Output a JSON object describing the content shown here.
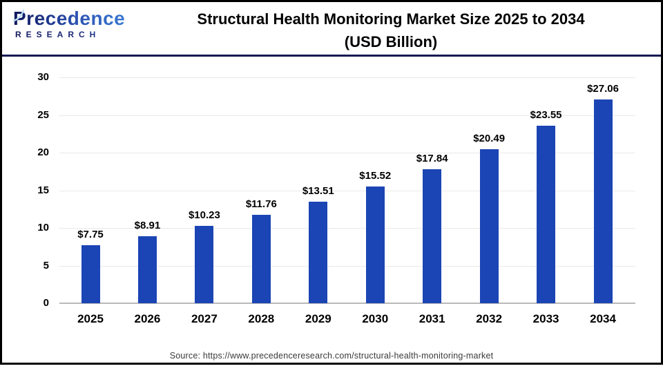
{
  "header": {
    "logo": {
      "brand": "Precedence",
      "subtitle": "RESEARCH"
    },
    "title_line1": "Structural Health Monitoring Market Size 2025 to 2034",
    "title_line2": "(USD Billion)"
  },
  "chart_data": {
    "type": "bar",
    "title": "Structural Health Monitoring Market Size 2025 to 2034 (USD Billion)",
    "categories": [
      "2025",
      "2026",
      "2027",
      "2028",
      "2029",
      "2030",
      "2031",
      "2032",
      "2033",
      "2034"
    ],
    "values": [
      7.75,
      8.91,
      10.23,
      11.76,
      13.51,
      15.52,
      17.84,
      20.49,
      23.55,
      27.06
    ],
    "value_labels": [
      "$7.75",
      "$8.91",
      "$10.23",
      "$11.76",
      "$13.51",
      "$15.52",
      "$17.84",
      "$20.49",
      "$23.55",
      "$27.06"
    ],
    "xlabel": "",
    "ylabel": "",
    "ylim": [
      0,
      30
    ],
    "yticks": [
      0,
      5,
      10,
      15,
      20,
      25,
      30
    ],
    "grid": true,
    "legend_position": "none",
    "bar_color": "#1B45B4"
  },
  "footer": {
    "source": "Source: https://www.precedenceresearch.com/structural-health-monitoring-market"
  },
  "colors": {
    "bar": "#1B45B4",
    "header_divider": "#131A52",
    "frame_border": "#000000",
    "gridline": "#E9E9E9",
    "baseline": "#B9B9B9",
    "logo_navy": "#10175E",
    "logo_blue": "#3C7FD6",
    "source_text": "#3A3A3A"
  }
}
